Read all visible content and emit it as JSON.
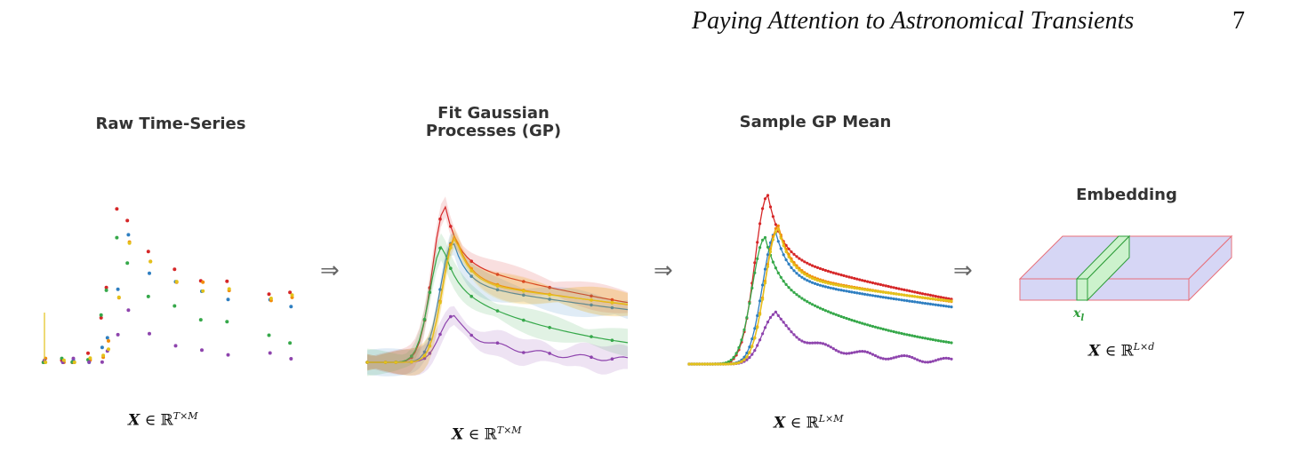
{
  "header": {
    "running_title": "Paying Attention to Astronomical Transients",
    "page_number": "7"
  },
  "stages": [
    {
      "title": "Raw Time-Series",
      "math_lhs": "X",
      "math_rel": " ∈ ℝ",
      "math_sup": "T×M"
    },
    {
      "title": "Fit Gaussian\nProcesses (GP)",
      "math_lhs": "X",
      "math_rel": " ∈ ℝ",
      "math_sup": "T×M"
    },
    {
      "title": "Sample GP Mean",
      "math_lhs": "X",
      "math_rel": " ∈ ℝ",
      "math_sup": "L×M"
    },
    {
      "title": "Embedding",
      "math_lhs": "X",
      "math_rel": " ∈ ℝ",
      "math_sup": "L×d"
    }
  ],
  "arrow_symbol": "⇒",
  "embedding_label": "x",
  "embedding_label_sub": "l",
  "colors": {
    "red": "#d62728",
    "blue": "#2f7fc1",
    "orange": "#f28c0a",
    "green": "#36a84a",
    "purple": "#8e44ad",
    "yellow": "#e3c21b",
    "embed_fill": "#d6d6f5",
    "embed_edge": "#e8707a",
    "slab_fill": "#ccf2cc",
    "slab_edge": "#2e9d3a"
  },
  "figure": {
    "bands": [
      "red",
      "blue",
      "orange",
      "green",
      "purple",
      "yellow"
    ],
    "peak_flux": {
      "red": 1.0,
      "orange": 0.82,
      "yellow": 0.8,
      "blue": 0.78,
      "green": 0.75,
      "purple": 0.3
    },
    "peak_phase": {
      "red": 0.3,
      "orange": 0.34,
      "yellow": 0.34,
      "blue": 0.33,
      "green": 0.29,
      "purple": 0.33
    },
    "decay_rate": {
      "red": 0.75,
      "orange": 0.55,
      "yellow": 0.5,
      "blue": 0.6,
      "green": 1.9,
      "purple": 3.5
    },
    "obs_epochs": [
      0.0,
      0.07,
      0.11,
      0.17,
      0.22,
      0.24,
      0.28,
      0.32,
      0.4,
      0.5,
      0.6,
      0.7,
      0.86,
      0.94
    ]
  }
}
